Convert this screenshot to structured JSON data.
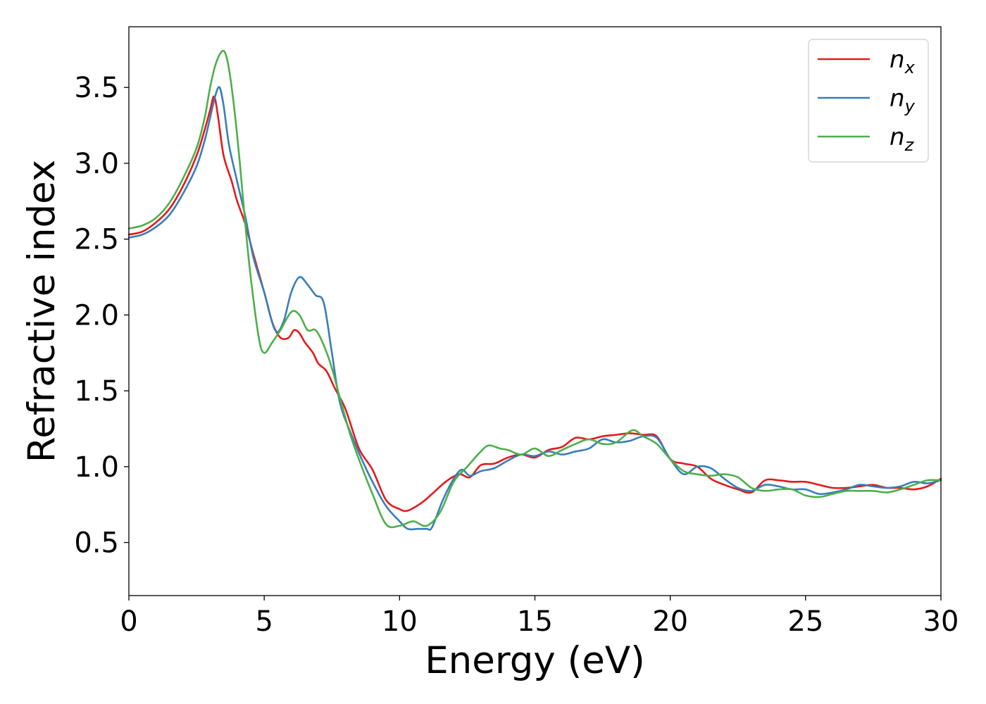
{
  "chart_data": {
    "type": "line",
    "title": "",
    "xlabel": "Energy (eV)",
    "ylabel": "Refractive index",
    "xlim": [
      0,
      30
    ],
    "ylim": [
      0.15,
      3.9
    ],
    "xticks": [
      0,
      5,
      10,
      15,
      20,
      25,
      30
    ],
    "yticks": [
      0.5,
      1.0,
      1.5,
      2.0,
      2.5,
      3.0,
      3.5
    ],
    "xtick_labels": [
      "0",
      "5",
      "10",
      "15",
      "20",
      "25",
      "30"
    ],
    "ytick_labels": [
      "0.5",
      "1.0",
      "1.5",
      "2.0",
      "2.5",
      "3.0",
      "3.5"
    ],
    "grid": false,
    "legend_position": "top-right",
    "series": [
      {
        "name": "n_x",
        "label_base": "n",
        "label_sub": "x",
        "color": "#e41a1c",
        "x": [
          0,
          0.5,
          1.0,
          1.5,
          2.0,
          2.5,
          2.8,
          3.0,
          3.15,
          3.3,
          3.5,
          3.8,
          4.0,
          4.3,
          4.6,
          5.0,
          5.3,
          5.6,
          5.9,
          6.1,
          6.3,
          6.5,
          6.8,
          7.0,
          7.3,
          7.6,
          8.0,
          8.5,
          9.0,
          9.5,
          10.0,
          10.3,
          10.8,
          11.2,
          11.7,
          12.2,
          12.6,
          13.0,
          13.5,
          14.0,
          14.5,
          15.0,
          15.5,
          16.0,
          16.5,
          17.0,
          17.5,
          18.0,
          18.5,
          19.0,
          19.5,
          20.0,
          20.5,
          21.0,
          21.5,
          22.0,
          22.5,
          23.0,
          23.5,
          24.0,
          24.5,
          25.0,
          25.5,
          26.0,
          26.5,
          27.0,
          27.5,
          28.0,
          28.5,
          29.0,
          29.5,
          30.0
        ],
        "values": [
          2.53,
          2.55,
          2.61,
          2.7,
          2.85,
          3.05,
          3.22,
          3.35,
          3.44,
          3.3,
          3.05,
          2.88,
          2.75,
          2.6,
          2.4,
          2.15,
          1.95,
          1.85,
          1.85,
          1.9,
          1.88,
          1.82,
          1.75,
          1.68,
          1.63,
          1.52,
          1.38,
          1.12,
          0.98,
          0.78,
          0.72,
          0.71,
          0.76,
          0.82,
          0.9,
          0.95,
          0.93,
          1.01,
          1.02,
          1.06,
          1.08,
          1.06,
          1.11,
          1.13,
          1.19,
          1.18,
          1.2,
          1.21,
          1.22,
          1.21,
          1.2,
          1.05,
          1.02,
          1.0,
          0.92,
          0.88,
          0.85,
          0.83,
          0.91,
          0.91,
          0.9,
          0.9,
          0.88,
          0.86,
          0.86,
          0.87,
          0.88,
          0.86,
          0.86,
          0.85,
          0.87,
          0.92
        ]
      },
      {
        "name": "n_y",
        "label_base": "n",
        "label_sub": "y",
        "color": "#377eb8",
        "x": [
          0,
          0.5,
          1.0,
          1.5,
          2.0,
          2.5,
          2.8,
          3.0,
          3.2,
          3.35,
          3.5,
          3.7,
          4.0,
          4.3,
          4.6,
          5.0,
          5.4,
          5.7,
          6.0,
          6.3,
          6.6,
          6.9,
          7.2,
          7.5,
          7.8,
          8.2,
          8.6,
          9.0,
          9.5,
          10.0,
          10.3,
          10.7,
          11.0,
          11.2,
          11.6,
          12.0,
          12.3,
          12.6,
          13.0,
          13.5,
          14.0,
          14.5,
          15.0,
          15.5,
          16.0,
          16.5,
          17.0,
          17.5,
          18.0,
          18.5,
          19.0,
          19.5,
          20.0,
          20.5,
          21.0,
          21.5,
          22.0,
          22.5,
          23.0,
          23.5,
          24.0,
          24.5,
          25.0,
          25.5,
          26.0,
          26.5,
          27.0,
          27.5,
          28.0,
          28.5,
          29.0,
          29.5,
          30.0
        ],
        "values": [
          2.51,
          2.53,
          2.58,
          2.66,
          2.8,
          2.98,
          3.15,
          3.3,
          3.45,
          3.5,
          3.38,
          3.12,
          2.88,
          2.65,
          2.38,
          2.15,
          1.9,
          1.95,
          2.15,
          2.25,
          2.2,
          2.13,
          2.08,
          1.75,
          1.42,
          1.22,
          1.05,
          0.9,
          0.74,
          0.64,
          0.59,
          0.59,
          0.59,
          0.6,
          0.78,
          0.92,
          0.98,
          0.94,
          0.97,
          0.99,
          1.04,
          1.08,
          1.07,
          1.1,
          1.08,
          1.1,
          1.12,
          1.18,
          1.16,
          1.17,
          1.2,
          1.19,
          1.05,
          0.95,
          1.0,
          0.99,
          0.92,
          0.86,
          0.84,
          0.88,
          0.87,
          0.85,
          0.85,
          0.82,
          0.83,
          0.85,
          0.88,
          0.87,
          0.86,
          0.87,
          0.9,
          0.89,
          0.91
        ]
      },
      {
        "name": "n_z",
        "label_base": "n",
        "label_sub": "z",
        "color": "#4daf4a",
        "x": [
          0,
          0.5,
          1.0,
          1.5,
          2.0,
          2.5,
          2.8,
          3.0,
          3.2,
          3.4,
          3.55,
          3.7,
          3.9,
          4.1,
          4.3,
          4.5,
          4.8,
          5.0,
          5.3,
          5.6,
          6.0,
          6.3,
          6.6,
          6.9,
          7.2,
          7.5,
          7.8,
          8.2,
          8.6,
          9.0,
          9.5,
          10.0,
          10.5,
          11.0,
          11.5,
          12.0,
          12.5,
          13.0,
          13.3,
          13.7,
          14.0,
          14.5,
          15.0,
          15.5,
          16.0,
          16.5,
          17.0,
          17.5,
          18.0,
          18.6,
          19.0,
          19.5,
          20.0,
          20.5,
          21.0,
          21.5,
          22.0,
          22.5,
          23.0,
          23.5,
          24.0,
          24.5,
          25.0,
          25.5,
          26.0,
          26.5,
          27.0,
          27.5,
          28.0,
          28.5,
          29.0,
          29.5,
          30.0
        ],
        "values": [
          2.57,
          2.59,
          2.64,
          2.74,
          2.9,
          3.1,
          3.3,
          3.5,
          3.65,
          3.73,
          3.73,
          3.62,
          3.35,
          3.0,
          2.6,
          2.25,
          1.85,
          1.75,
          1.82,
          1.9,
          2.02,
          2.0,
          1.9,
          1.9,
          1.8,
          1.65,
          1.45,
          1.2,
          1.0,
          0.82,
          0.62,
          0.61,
          0.64,
          0.61,
          0.7,
          0.9,
          1.0,
          1.1,
          1.14,
          1.12,
          1.11,
          1.08,
          1.12,
          1.07,
          1.11,
          1.15,
          1.18,
          1.15,
          1.16,
          1.24,
          1.2,
          1.15,
          1.05,
          0.97,
          0.95,
          0.94,
          0.95,
          0.93,
          0.86,
          0.84,
          0.85,
          0.85,
          0.81,
          0.8,
          0.82,
          0.84,
          0.84,
          0.84,
          0.83,
          0.85,
          0.88,
          0.91,
          0.91
        ]
      }
    ]
  }
}
